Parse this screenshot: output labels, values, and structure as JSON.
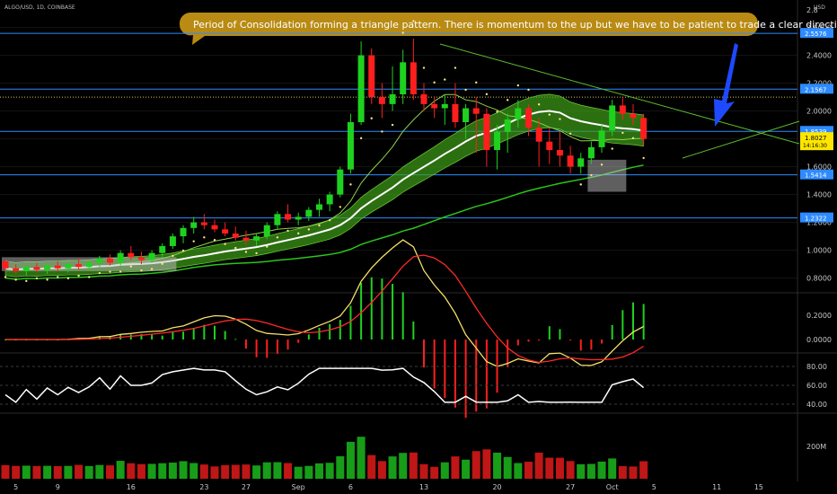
{
  "chart_data": {
    "type": "candlestick",
    "symbol": "ALGO/USD, 1D, COINBASE",
    "currency": "USD",
    "annotation": "Period of Consolidation forming a triangle pattern. There is momentum to the up but we have to be patient to trade a clear direction",
    "price_ticks": [
      "2.6000",
      "2.4000",
      "2.2000",
      "2.0000",
      "1.8000",
      "1.6000",
      "1.4000",
      "1.2000",
      "1.0000",
      "0.8000"
    ],
    "ylim": [
      0.72,
      2.72
    ],
    "date_ticks": [
      {
        "label": "5",
        "i": 1
      },
      {
        "label": "9",
        "i": 5
      },
      {
        "label": "16",
        "i": 12
      },
      {
        "label": "23",
        "i": 19
      },
      {
        "label": "27",
        "i": 23
      },
      {
        "label": "Sep",
        "i": 28
      },
      {
        "label": "6",
        "i": 33
      },
      {
        "label": "13",
        "i": 40
      },
      {
        "label": "20",
        "i": 47
      },
      {
        "label": "27",
        "i": 54
      },
      {
        "label": "Oct",
        "i": 58
      },
      {
        "label": "5",
        "i": 62
      },
      {
        "label": "11",
        "i": 68
      },
      {
        "label": "15",
        "i": 72
      }
    ],
    "horizontal_levels": [
      {
        "value": 2.5576,
        "label": "2.5576"
      },
      {
        "value": 2.1567,
        "label": "2.1567"
      },
      {
        "value": 1.8539,
        "label": "1.8539"
      },
      {
        "value": 1.5414,
        "label": "1.5414"
      },
      {
        "value": 1.2322,
        "label": "1.2322"
      }
    ],
    "dotted_level": 2.1,
    "last_price": {
      "value": 1.8027,
      "label": "1.8027",
      "countdown": "14:16:30"
    },
    "axis_top_label": "2.8",
    "candles": [
      [
        0.92,
        0.93,
        0.85,
        0.87
      ],
      [
        0.87,
        0.9,
        0.83,
        0.85
      ],
      [
        0.85,
        0.89,
        0.82,
        0.88
      ],
      [
        0.88,
        0.91,
        0.84,
        0.86
      ],
      [
        0.86,
        0.9,
        0.83,
        0.89
      ],
      [
        0.89,
        0.92,
        0.85,
        0.87
      ],
      [
        0.87,
        0.91,
        0.84,
        0.9
      ],
      [
        0.9,
        0.94,
        0.86,
        0.88
      ],
      [
        0.88,
        0.92,
        0.85,
        0.91
      ],
      [
        0.91,
        0.96,
        0.88,
        0.94
      ],
      [
        0.94,
        0.97,
        0.89,
        0.91
      ],
      [
        0.91,
        1.0,
        0.89,
        0.98
      ],
      [
        0.98,
        1.03,
        0.93,
        0.95
      ],
      [
        0.95,
        0.99,
        0.9,
        0.93
      ],
      [
        0.93,
        1.0,
        0.91,
        0.98
      ],
      [
        0.98,
        1.05,
        0.95,
        1.03
      ],
      [
        1.03,
        1.12,
        1.01,
        1.1
      ],
      [
        1.1,
        1.18,
        1.05,
        1.16
      ],
      [
        1.16,
        1.24,
        1.12,
        1.2
      ],
      [
        1.2,
        1.26,
        1.15,
        1.18
      ],
      [
        1.18,
        1.22,
        1.13,
        1.15
      ],
      [
        1.15,
        1.2,
        1.1,
        1.12
      ],
      [
        1.12,
        1.17,
        1.07,
        1.09
      ],
      [
        1.09,
        1.14,
        1.04,
        1.07
      ],
      [
        1.07,
        1.12,
        1.03,
        1.1
      ],
      [
        1.1,
        1.2,
        1.08,
        1.18
      ],
      [
        1.18,
        1.28,
        1.15,
        1.26
      ],
      [
        1.26,
        1.33,
        1.2,
        1.22
      ],
      [
        1.22,
        1.27,
        1.18,
        1.24
      ],
      [
        1.24,
        1.31,
        1.21,
        1.29
      ],
      [
        1.29,
        1.37,
        1.24,
        1.33
      ],
      [
        1.33,
        1.42,
        1.28,
        1.4
      ],
      [
        1.4,
        1.6,
        1.38,
        1.58
      ],
      [
        1.58,
        1.98,
        1.55,
        1.92
      ],
      [
        1.92,
        2.5,
        1.9,
        2.4
      ],
      [
        2.4,
        2.45,
        2.05,
        2.1
      ],
      [
        2.1,
        2.2,
        1.95,
        2.05
      ],
      [
        2.05,
        2.32,
        2.0,
        2.12
      ],
      [
        2.12,
        2.44,
        2.05,
        2.35
      ],
      [
        2.35,
        2.52,
        2.08,
        2.12
      ],
      [
        2.12,
        2.2,
        2.0,
        2.05
      ],
      [
        2.05,
        2.1,
        1.95,
        2.02
      ],
      [
        2.02,
        2.12,
        1.9,
        2.05
      ],
      [
        2.05,
        2.2,
        1.88,
        1.92
      ],
      [
        1.92,
        2.05,
        1.8,
        2.02
      ],
      [
        2.02,
        2.1,
        1.7,
        1.98
      ],
      [
        1.98,
        2.02,
        1.6,
        1.72
      ],
      [
        1.72,
        1.9,
        1.58,
        1.85
      ],
      [
        1.85,
        1.98,
        1.7,
        1.94
      ],
      [
        1.94,
        2.08,
        1.88,
        2.02
      ],
      [
        2.02,
        2.05,
        1.82,
        1.88
      ],
      [
        1.88,
        1.95,
        1.6,
        1.78
      ],
      [
        1.78,
        1.88,
        1.62,
        1.72
      ],
      [
        1.72,
        1.85,
        1.6,
        1.68
      ],
      [
        1.68,
        1.75,
        1.55,
        1.6
      ],
      [
        1.6,
        1.7,
        1.55,
        1.66
      ],
      [
        1.66,
        1.78,
        1.62,
        1.74
      ],
      [
        1.74,
        1.9,
        1.7,
        1.86
      ],
      [
        1.86,
        2.08,
        1.82,
        2.04
      ],
      [
        2.04,
        2.1,
        1.94,
        1.98
      ],
      [
        1.98,
        2.05,
        1.9,
        1.95
      ],
      [
        1.95,
        1.98,
        1.75,
        1.8
      ]
    ],
    "panels": [
      {
        "name": "macd",
        "ticks": [
          "0.2000",
          "0.0000"
        ]
      },
      {
        "name": "rsi",
        "ticks": [
          "80.00",
          "60.00",
          "40.00"
        ]
      },
      {
        "name": "volume",
        "ticks": [
          "200M"
        ]
      }
    ],
    "colors": {
      "up": "#1fd11f",
      "down": "#ff1e1e",
      "annotation": "#b98b14",
      "arrow": "#1e49ff",
      "level": "#2e8bff",
      "ribbon": "#3f9e18",
      "ma_white": "#ffffff",
      "ma_green": "#2bc419",
      "trend": "#5dbf2c",
      "sar": "#ffe28a"
    }
  }
}
